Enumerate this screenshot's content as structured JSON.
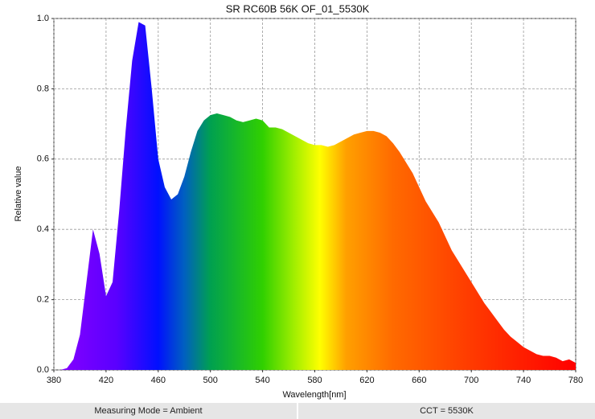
{
  "chart_data": {
    "type": "area",
    "title": "SR RC60B 56K OF_01_5530K",
    "x_label": "Wavelength[nm]",
    "y_label": "Relative value",
    "x": [
      380,
      385,
      390,
      395,
      400,
      405,
      410,
      415,
      420,
      425,
      430,
      435,
      440,
      445,
      450,
      455,
      460,
      465,
      470,
      475,
      480,
      485,
      490,
      495,
      500,
      505,
      510,
      515,
      520,
      525,
      530,
      535,
      540,
      545,
      550,
      555,
      560,
      565,
      570,
      575,
      580,
      585,
      590,
      595,
      600,
      605,
      610,
      615,
      620,
      625,
      630,
      635,
      640,
      645,
      650,
      655,
      660,
      665,
      670,
      675,
      680,
      685,
      690,
      695,
      700,
      705,
      710,
      715,
      720,
      725,
      730,
      735,
      740,
      745,
      750,
      755,
      760,
      765,
      770,
      775,
      780
    ],
    "values": [
      0,
      0,
      0.005,
      0.03,
      0.1,
      0.25,
      0.4,
      0.33,
      0.21,
      0.25,
      0.45,
      0.68,
      0.88,
      0.99,
      0.98,
      0.8,
      0.6,
      0.52,
      0.485,
      0.5,
      0.55,
      0.62,
      0.68,
      0.71,
      0.725,
      0.73,
      0.725,
      0.72,
      0.71,
      0.705,
      0.71,
      0.715,
      0.71,
      0.69,
      0.69,
      0.685,
      0.675,
      0.665,
      0.655,
      0.645,
      0.64,
      0.64,
      0.635,
      0.64,
      0.65,
      0.66,
      0.67,
      0.675,
      0.68,
      0.68,
      0.675,
      0.665,
      0.645,
      0.62,
      0.59,
      0.56,
      0.52,
      0.48,
      0.45,
      0.42,
      0.38,
      0.34,
      0.31,
      0.28,
      0.25,
      0.22,
      0.19,
      0.165,
      0.14,
      0.115,
      0.095,
      0.08,
      0.065,
      0.055,
      0.045,
      0.04,
      0.04,
      0.035,
      0.025,
      0.03,
      0.02
    ],
    "xlim": [
      380,
      780
    ],
    "xticks": [
      380,
      420,
      460,
      500,
      540,
      580,
      620,
      660,
      700,
      740,
      780
    ],
    "ylim": [
      0,
      1
    ],
    "yticks": [
      {
        "value": 0,
        "label": "0.0"
      },
      0.2,
      0.4,
      0.6,
      0.8,
      {
        "value": 1,
        "label": "1.0"
      }
    ],
    "grid": true
  },
  "footer": [
    "Measuring Mode = Ambient",
    "CCT = 5530K"
  ]
}
